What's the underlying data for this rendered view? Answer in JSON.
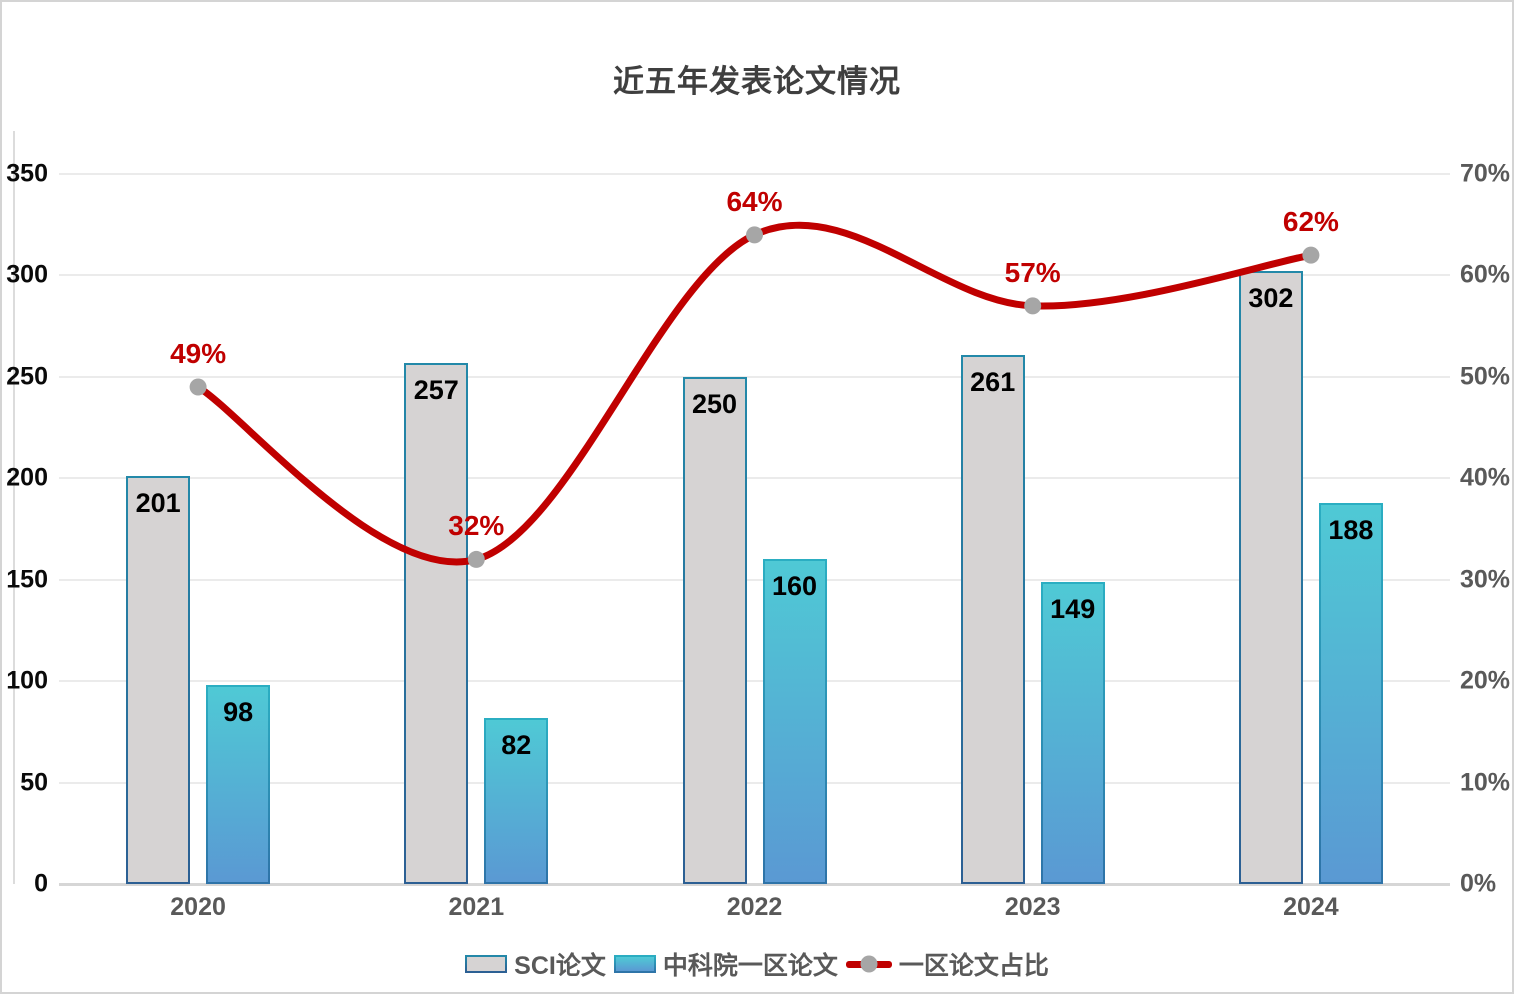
{
  "title": "近五年发表论文情况",
  "chart_data": {
    "type": "combo",
    "title": "近五年发表论文情况",
    "categories": [
      "2020",
      "2021",
      "2022",
      "2023",
      "2024"
    ],
    "series": [
      {
        "name": "SCI论文",
        "type": "bar",
        "axis": "left",
        "values": [
          201,
          257,
          250,
          261,
          302
        ]
      },
      {
        "name": "中科院一区论文",
        "type": "bar",
        "axis": "left",
        "values": [
          98,
          82,
          160,
          149,
          188
        ]
      },
      {
        "name": "一区论文占比",
        "type": "line",
        "axis": "right",
        "values": [
          49,
          32,
          64,
          57,
          62
        ],
        "point_labels": [
          "49%",
          "32%",
          "64%",
          "57%",
          "62%"
        ]
      }
    ],
    "left_axis": {
      "min": 0,
      "max": 350,
      "step": 50,
      "ticks": [
        "0",
        "50",
        "100",
        "150",
        "200",
        "250",
        "300",
        "350"
      ]
    },
    "right_axis": {
      "min": 0,
      "max": 70,
      "step": 10,
      "ticks": [
        "0%",
        "10%",
        "20%",
        "30%",
        "40%",
        "50%",
        "60%",
        "70%"
      ]
    },
    "grid": true,
    "legend_position": "bottom",
    "line_smooth": true
  },
  "legend": {
    "items": [
      {
        "label": "SCI论文",
        "swatch": "bar1"
      },
      {
        "label": "中科院一区论文",
        "swatch": "bar2"
      },
      {
        "label": "一区论文占比",
        "swatch": "line"
      }
    ]
  },
  "colors": {
    "bar1_fill": "#d6d3d3",
    "bar1_border_top": "#2389a9",
    "bar1_border_bottom": "#2c5f93",
    "bar2_fill_top": "#4fc9d5",
    "bar2_fill_bottom": "#5a99d3",
    "bar2_border_top": "#2baec2",
    "bar2_border_bottom": "#2e73a8",
    "line": "#c00000",
    "marker": "#a6a6a6",
    "title_text": "#3f3f3f",
    "axis_left_text": "#0a0a0a",
    "axis_right_text": "#595959",
    "xlabel_text": "#595959",
    "pct_label_text": "#c00000",
    "grid": "#ebebeb",
    "baseline": "#d6d6d6"
  }
}
